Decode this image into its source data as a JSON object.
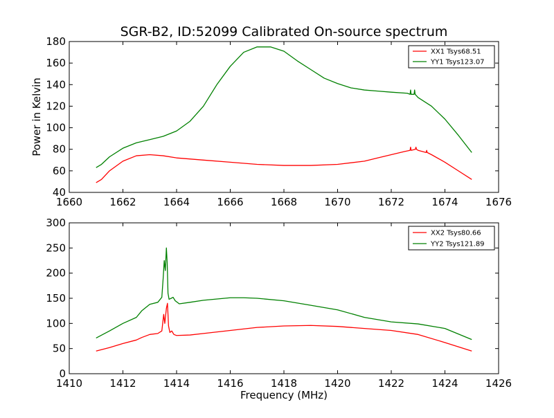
{
  "title": "SGR-B2, ID:52099 Calibrated On-source spectrum",
  "chart_data": [
    {
      "type": "line",
      "ylabel": "Power in Kelvin",
      "xlabel": "",
      "xlim": [
        1660,
        1676
      ],
      "ylim": [
        40,
        180
      ],
      "xticks": [
        1660,
        1662,
        1664,
        1666,
        1668,
        1670,
        1672,
        1674,
        1676
      ],
      "yticks": [
        40,
        60,
        80,
        100,
        120,
        140,
        160,
        180
      ],
      "legend_position": "top-right",
      "series": [
        {
          "name": "XX1 Tsys68.51",
          "color": "#ff0000",
          "x": [
            1661.0,
            1661.2,
            1661.5,
            1662.0,
            1662.5,
            1663.0,
            1663.5,
            1664.0,
            1665.0,
            1666.0,
            1667.0,
            1668.0,
            1669.0,
            1670.0,
            1671.0,
            1671.5,
            1672.0,
            1672.5,
            1672.7,
            1672.72,
            1672.74,
            1672.9,
            1672.92,
            1672.94,
            1673.0,
            1673.3,
            1673.32,
            1673.34,
            1673.5,
            1674.0,
            1674.5,
            1675.0
          ],
          "y": [
            49,
            52,
            60,
            69,
            74,
            75,
            74,
            72,
            70,
            68,
            66,
            65,
            65,
            66,
            69,
            72,
            75,
            78,
            79,
            82,
            79,
            80,
            82,
            80,
            79,
            77,
            79,
            77,
            75,
            68,
            60,
            52
          ]
        },
        {
          "name": "YY1 Tsys123.07",
          "color": "#008000",
          "x": [
            1661.0,
            1661.2,
            1661.5,
            1662.0,
            1662.5,
            1663.0,
            1663.5,
            1664.0,
            1664.5,
            1665.0,
            1665.5,
            1666.0,
            1666.5,
            1667.0,
            1667.5,
            1668.0,
            1668.5,
            1669.0,
            1669.5,
            1670.0,
            1670.5,
            1671.0,
            1671.5,
            1672.0,
            1672.6,
            1672.7,
            1672.72,
            1672.74,
            1672.85,
            1672.87,
            1672.89,
            1673.0,
            1673.5,
            1674.0,
            1674.5,
            1675.0
          ],
          "y": [
            63,
            66,
            73,
            81,
            86,
            89,
            92,
            97,
            106,
            120,
            140,
            157,
            170,
            175,
            175,
            171,
            162,
            154,
            146,
            141,
            137,
            135,
            134,
            133,
            132,
            131,
            135,
            131,
            131,
            135,
            131,
            128,
            120,
            108,
            93,
            77
          ]
        }
      ]
    },
    {
      "type": "line",
      "ylabel": "",
      "xlabel": "Frequency (MHz)",
      "xlim": [
        1410,
        1426
      ],
      "ylim": [
        0,
        300
      ],
      "xticks": [
        1410,
        1412,
        1414,
        1416,
        1418,
        1420,
        1422,
        1424,
        1426
      ],
      "yticks": [
        0,
        50,
        100,
        150,
        200,
        250,
        300
      ],
      "legend_position": "top-right",
      "series": [
        {
          "name": "XX2 Tsys80.66",
          "color": "#ff0000",
          "x": [
            1411.0,
            1411.5,
            1412.0,
            1412.5,
            1412.7,
            1413.0,
            1413.3,
            1413.45,
            1413.52,
            1413.56,
            1413.62,
            1413.66,
            1413.7,
            1413.75,
            1413.82,
            1413.9,
            1414.0,
            1414.5,
            1415.0,
            1416.0,
            1417.0,
            1418.0,
            1419.0,
            1420.0,
            1421.0,
            1422.0,
            1423.0,
            1424.0,
            1425.0
          ],
          "y": [
            45,
            52,
            60,
            67,
            72,
            78,
            80,
            85,
            118,
            100,
            130,
            140,
            95,
            82,
            85,
            78,
            76,
            77,
            80,
            86,
            92,
            95,
            96,
            94,
            90,
            86,
            78,
            62,
            45
          ]
        },
        {
          "name": "YY2 Tsys121.89",
          "color": "#008000",
          "x": [
            1411.0,
            1411.5,
            1412.0,
            1412.5,
            1412.7,
            1413.0,
            1413.3,
            1413.45,
            1413.5,
            1413.54,
            1413.58,
            1413.62,
            1413.65,
            1413.68,
            1413.72,
            1413.8,
            1413.87,
            1413.95,
            1414.1,
            1414.5,
            1415.0,
            1416.0,
            1416.5,
            1417.0,
            1418.0,
            1419.0,
            1420.0,
            1421.0,
            1422.0,
            1423.0,
            1424.0,
            1425.0
          ],
          "y": [
            71,
            85,
            100,
            112,
            125,
            138,
            142,
            152,
            190,
            225,
            205,
            250,
            220,
            160,
            148,
            150,
            152,
            145,
            139,
            142,
            146,
            151,
            151,
            150,
            145,
            136,
            127,
            112,
            103,
            99,
            90,
            68
          ]
        }
      ]
    }
  ]
}
